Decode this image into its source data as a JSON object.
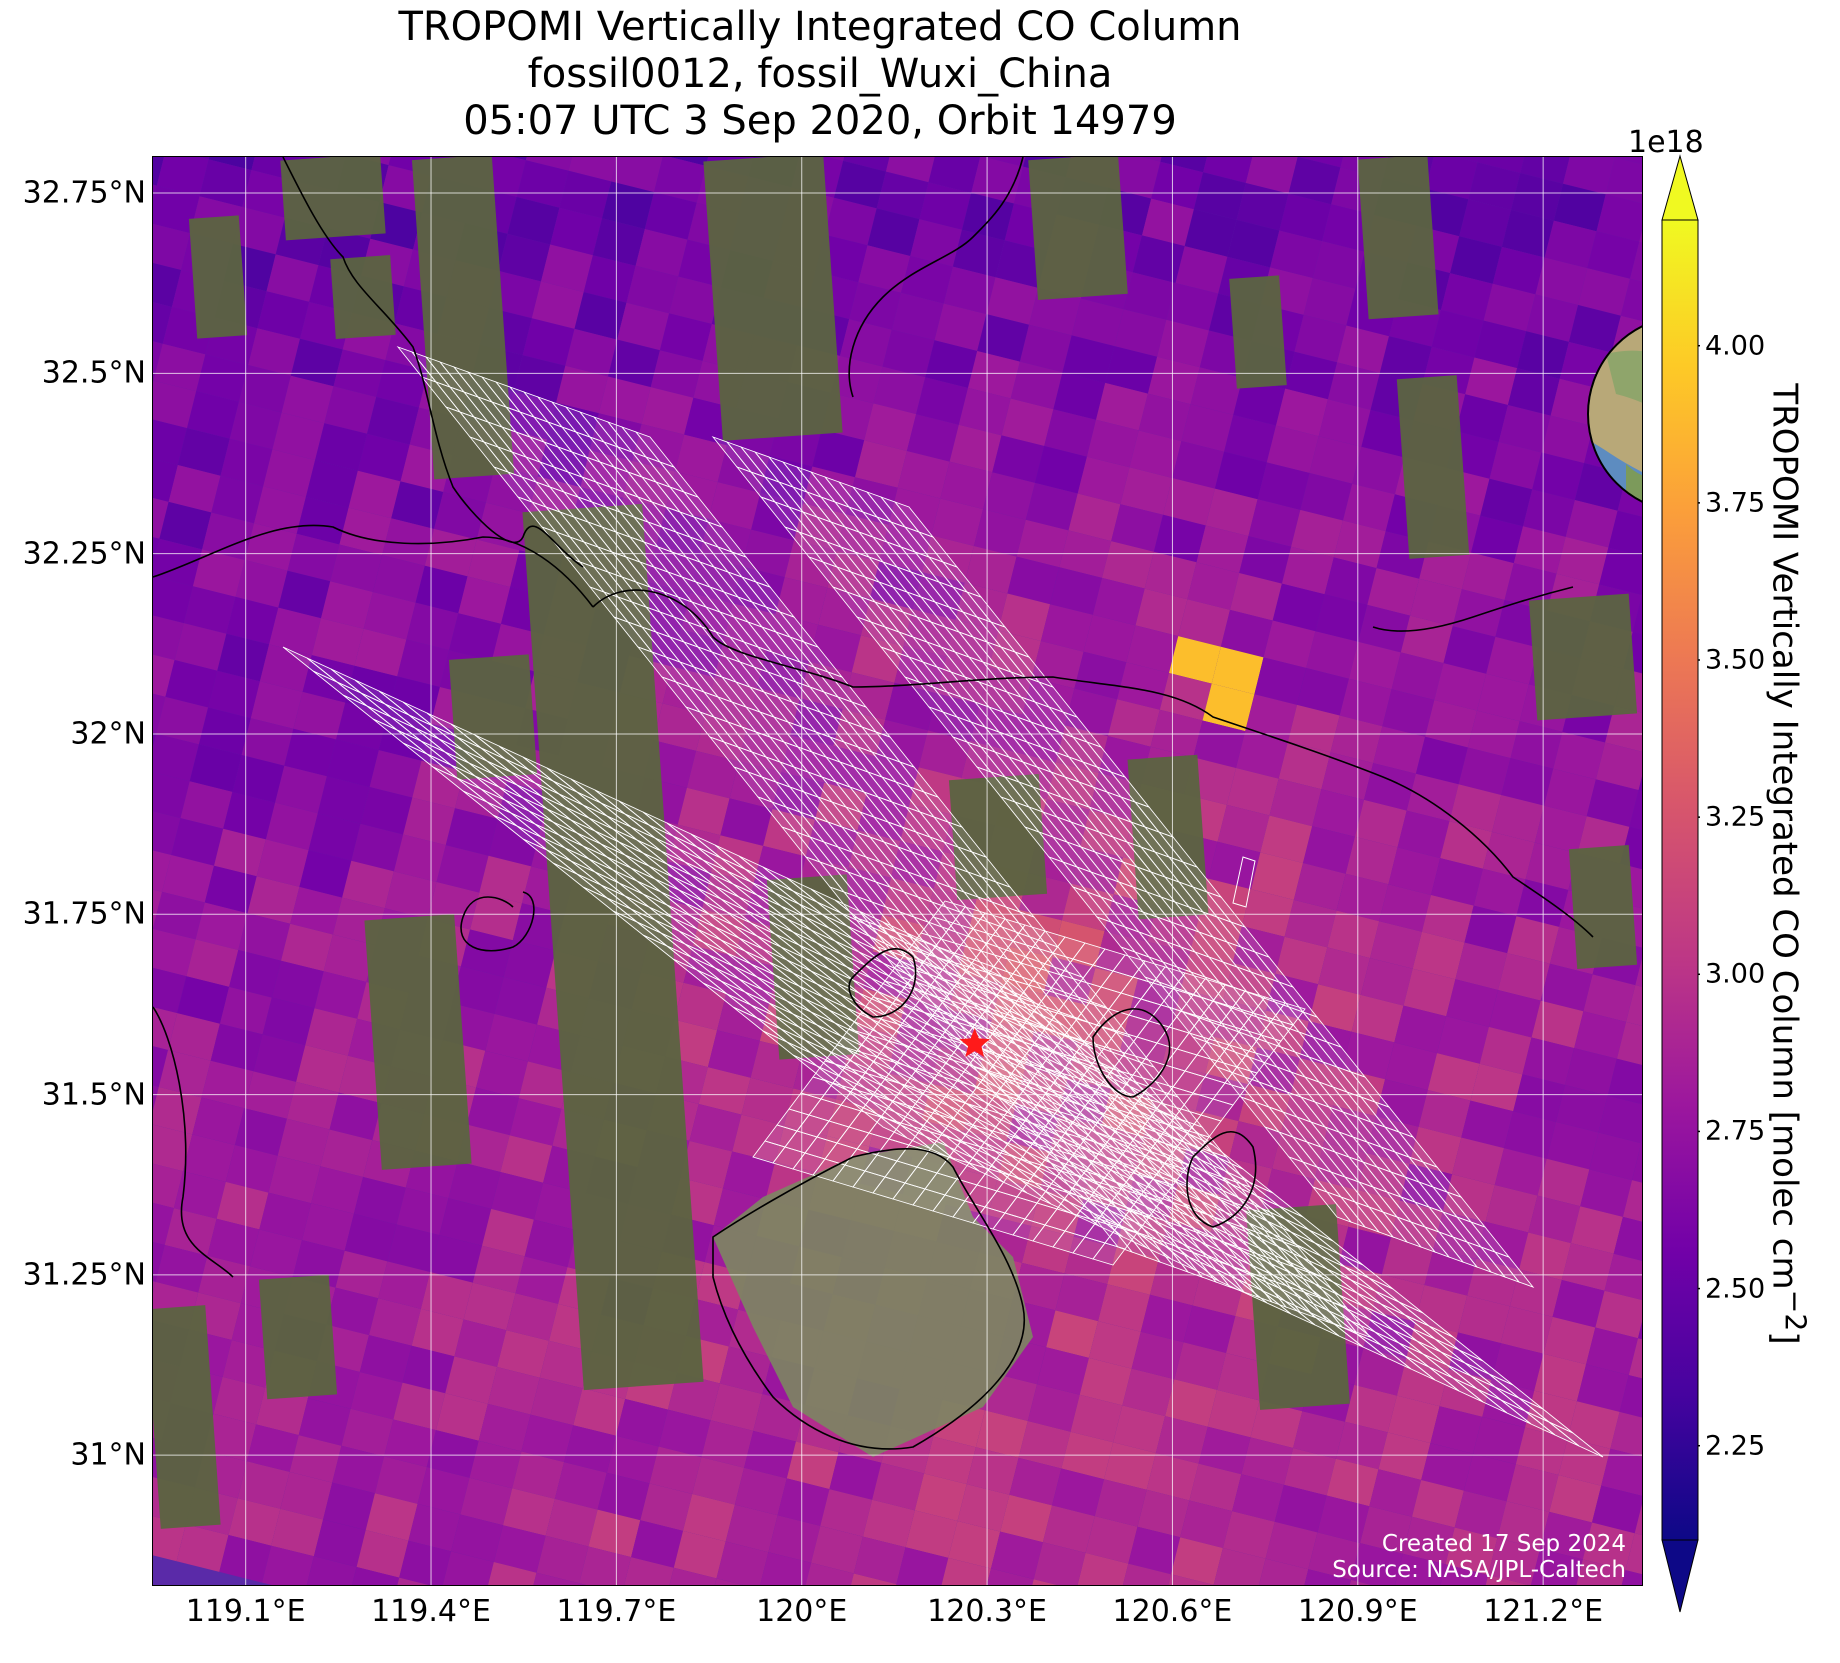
{
  "title": {
    "line1": "TROPOMI Vertically Integrated CO Column",
    "line2": "fossil0012, fossil_Wuxi_China",
    "line3": "05:07 UTC 3 Sep 2020, Orbit 14979"
  },
  "map": {
    "lon_range": [
      118.95,
      121.36
    ],
    "lat_range": [
      30.82,
      32.8
    ],
    "lat_ticks": [
      "32.75°N",
      "32.5°N",
      "32.25°N",
      "32°N",
      "31.75°N",
      "31.5°N",
      "31.25°N",
      "31°N"
    ],
    "lat_tick_values": [
      32.75,
      32.5,
      32.25,
      32.0,
      31.75,
      31.5,
      31.25,
      31.0
    ],
    "lon_ticks": [
      "119.1°E",
      "119.4°E",
      "119.7°E",
      "120°E",
      "120.3°E",
      "120.6°E",
      "120.9°E",
      "121.2°E"
    ],
    "lon_tick_values": [
      119.1,
      119.4,
      119.7,
      120.0,
      120.3,
      120.6,
      120.9,
      121.2
    ],
    "grid": true,
    "target_marker": {
      "lon": 120.28,
      "lat": 31.57,
      "color": "#ff1a1a",
      "symbol": "star"
    },
    "overlay": "target-mode sounding footprints (white outlines)",
    "basemap": "satellite imagery",
    "coastline_color": "#000000",
    "credit_line1": "Created 17 Sep 2024",
    "credit_line2": "Source: NASA/JPL-Caltech"
  },
  "inset": {
    "description": "globe locator centered on East Asia",
    "marker_color": "#ff1a1a"
  },
  "colorbar": {
    "label": "TROPOMI Vertically Integrated CO Column [molec cm",
    "label_sup": "−2",
    "label_end": "]",
    "exponent": "1e18",
    "tick_labels": [
      "4.00",
      "3.75",
      "3.50",
      "3.25",
      "3.00",
      "2.75",
      "2.50",
      "2.25"
    ],
    "tick_values": [
      4.0,
      3.75,
      3.5,
      3.25,
      3.0,
      2.75,
      2.5,
      2.25
    ],
    "range": [
      2.1,
      4.2
    ],
    "colormap": "plasma",
    "extend": "both",
    "colors": [
      "#0d0887",
      "#46039f",
      "#7201a8",
      "#9c179e",
      "#bd3786",
      "#d8576b",
      "#ed7953",
      "#fb9f3a",
      "#fdca26",
      "#f0f921"
    ]
  }
}
